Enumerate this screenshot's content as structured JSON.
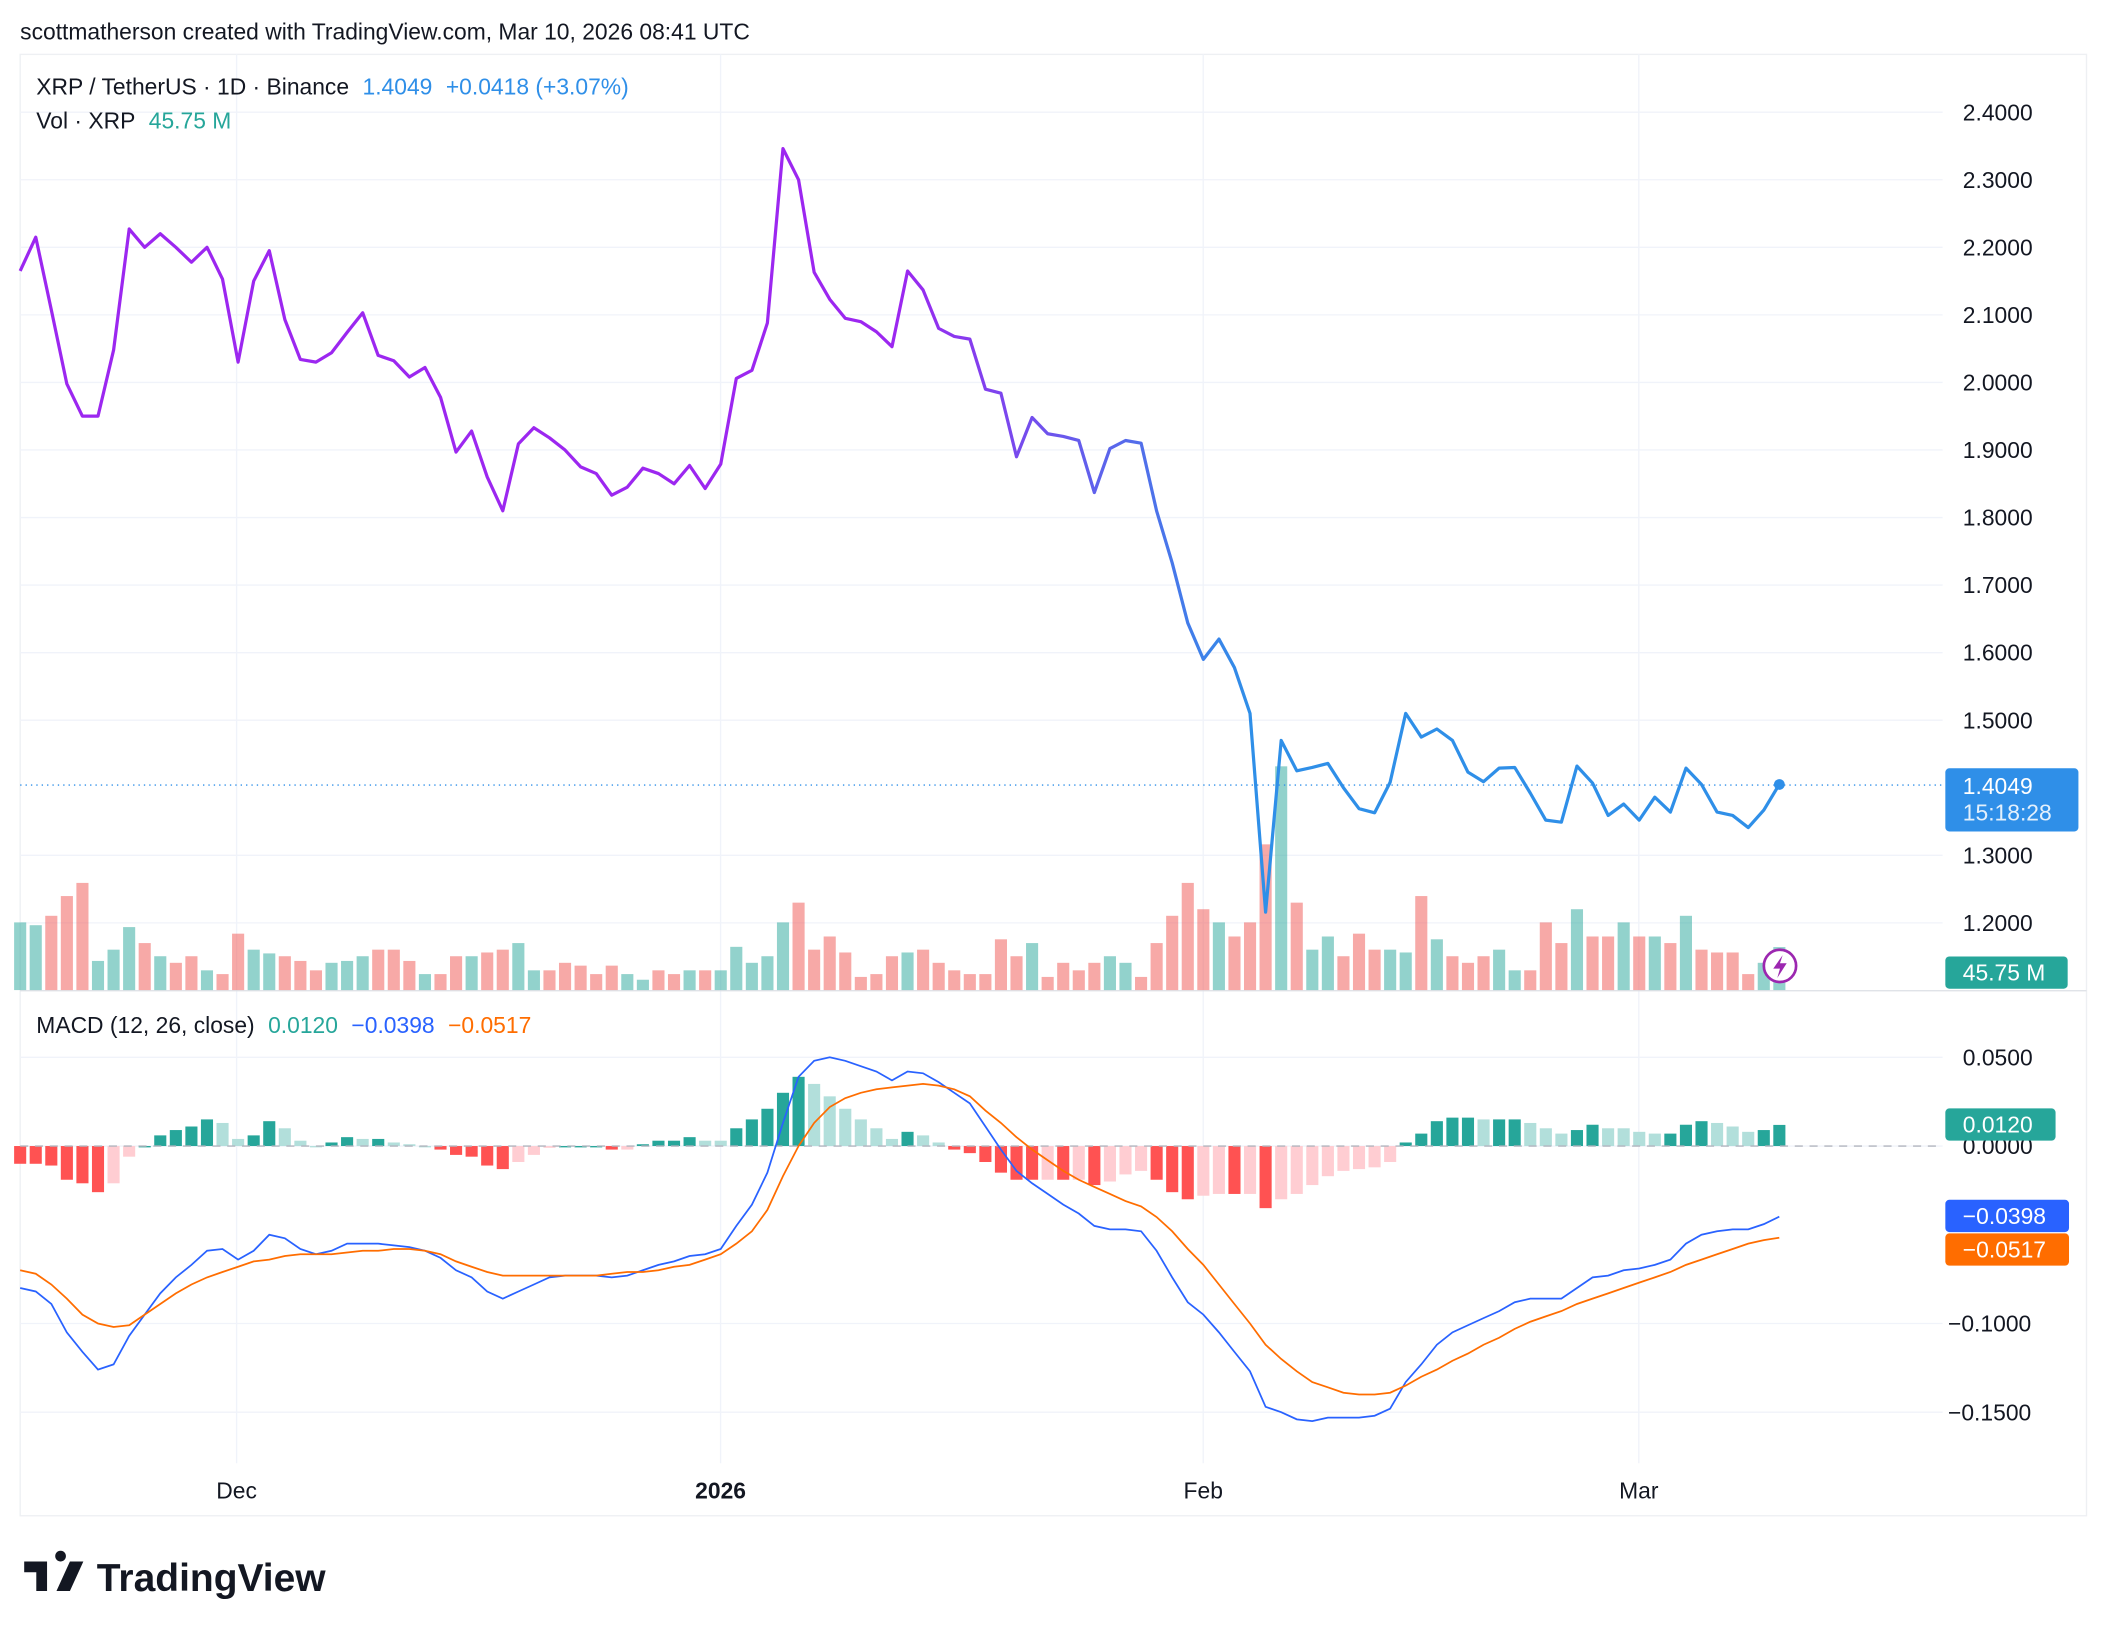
{
  "header": {
    "attribution": "scottmatherson created with TradingView.com, Mar 10, 2026 08:41 UTC"
  },
  "legend": {
    "symbol": "XRP / TetherUS · 1D · Binance",
    "last": "1.4049",
    "change": "+0.0418 (+3.07%)",
    "vol_label": "Vol · XRP",
    "vol_value": "45.75 M",
    "macd_label": "MACD (12, 26, close)",
    "macd_hist": "0.0120",
    "macd_line": "−0.0398",
    "macd_signal": "−0.0517"
  },
  "badges": {
    "price": "1.4049",
    "countdown": "15:18:28",
    "volume": "45.75 M",
    "hist": "0.0120",
    "macd": "−0.0398",
    "signal": "−0.0517"
  },
  "colors": {
    "price_start": "#9c27f0",
    "price_end": "#2f8fe8",
    "up": "#26a69a",
    "down": "#ef5350",
    "macd": "#2962ff",
    "signal": "#ff6d00",
    "badge_price": "#2f8fe8"
  },
  "logo": "TradingView",
  "chart_data": [
    {
      "type": "line",
      "title": "XRP / TetherUS · 1D · Binance",
      "start_date": "2025-11-17",
      "end_date": "2026-03-10",
      "x_ticks": [
        "Dec",
        "2026",
        "Feb",
        "Mar"
      ],
      "y_ticks": [
        "2.4000",
        "2.3000",
        "2.2000",
        "2.1000",
        "2.0000",
        "1.9000",
        "1.8000",
        "1.7000",
        "1.6000",
        "1.5000",
        "1.3000",
        "1.2000"
      ],
      "ylim": [
        1.1,
        2.45
      ],
      "grid": true,
      "close": [
        2.165,
        2.215,
        2.107,
        1.998,
        1.95,
        1.95,
        2.048,
        2.227,
        2.2,
        2.22,
        2.2,
        2.178,
        2.2,
        2.153,
        2.03,
        2.15,
        2.195,
        2.093,
        2.034,
        2.03,
        2.044,
        2.074,
        2.103,
        2.04,
        2.032,
        2.008,
        2.022,
        1.978,
        1.897,
        1.928,
        1.86,
        1.81,
        1.909,
        1.933,
        1.918,
        1.9,
        1.875,
        1.865,
        1.833,
        1.845,
        1.873,
        1.865,
        1.85,
        1.877,
        1.843,
        1.879,
        2.006,
        2.018,
        2.088,
        2.346,
        2.3,
        2.163,
        2.123,
        2.095,
        2.09,
        2.075,
        2.053,
        2.165,
        2.137,
        2.08,
        2.068,
        2.064,
        1.99,
        1.984,
        1.89,
        1.948,
        1.924,
        1.92,
        1.914,
        1.837,
        1.902,
        1.914,
        1.91,
        1.81,
        1.733,
        1.644,
        1.59,
        1.62,
        1.578,
        1.51,
        1.216,
        1.47,
        1.425,
        1.43,
        1.436,
        1.4,
        1.369,
        1.363,
        1.408,
        1.51,
        1.475,
        1.487,
        1.47,
        1.423,
        1.409,
        1.429,
        1.43,
        1.392,
        1.352,
        1.349,
        1.432,
        1.407,
        1.359,
        1.376,
        1.352,
        1.386,
        1.364,
        1.429,
        1.405,
        1.364,
        1.359,
        1.341,
        1.367,
        1.4049
      ],
      "volume_millions": [
        72,
        69,
        79,
        100,
        114,
        31,
        43,
        67,
        50,
        36,
        29,
        36,
        21,
        17,
        60,
        43,
        39,
        36,
        31,
        21,
        29,
        31,
        36,
        43,
        43,
        31,
        17,
        17,
        36,
        36,
        40,
        43,
        50,
        21,
        21,
        29,
        26,
        17,
        26,
        17,
        11,
        21,
        17,
        21,
        21,
        21,
        46,
        29,
        36,
        72,
        93,
        43,
        57,
        40,
        14,
        17,
        36,
        40,
        43,
        29,
        21,
        17,
        17,
        54,
        36,
        50,
        14,
        29,
        21,
        29,
        36,
        29,
        14,
        50,
        79,
        114,
        86,
        72,
        57,
        72,
        155,
        238,
        93,
        43,
        57,
        36,
        60,
        43,
        43,
        40,
        100,
        54,
        36,
        29,
        36,
        43,
        21,
        21,
        72,
        50,
        86,
        57,
        57,
        72,
        57,
        57,
        50,
        79,
        43,
        40,
        40,
        17,
        29,
        45.75
      ]
    },
    {
      "type": "line",
      "title": "MACD (12, 26, close)",
      "y_ticks": [
        "0.0500",
        "0.0000",
        "−0.1000",
        "−0.1500"
      ],
      "ylim": [
        -0.17,
        0.065
      ],
      "macd": [
        -0.08,
        -0.082,
        -0.089,
        -0.105,
        -0.116,
        -0.126,
        -0.123,
        -0.107,
        -0.095,
        -0.083,
        -0.074,
        -0.067,
        -0.059,
        -0.058,
        -0.064,
        -0.059,
        -0.05,
        -0.052,
        -0.058,
        -0.061,
        -0.059,
        -0.055,
        -0.055,
        -0.055,
        -0.056,
        -0.057,
        -0.059,
        -0.063,
        -0.07,
        -0.074,
        -0.082,
        -0.086,
        -0.082,
        -0.078,
        -0.074,
        -0.073,
        -0.073,
        -0.073,
        -0.074,
        -0.073,
        -0.07,
        -0.067,
        -0.065,
        -0.062,
        -0.061,
        -0.058,
        -0.045,
        -0.033,
        -0.015,
        0.013,
        0.039,
        0.048,
        0.05,
        0.048,
        0.045,
        0.042,
        0.037,
        0.042,
        0.041,
        0.036,
        0.03,
        0.024,
        0.011,
        -0.002,
        -0.014,
        -0.021,
        -0.027,
        -0.033,
        -0.038,
        -0.045,
        -0.047,
        -0.047,
        -0.048,
        -0.059,
        -0.074,
        -0.088,
        -0.095,
        -0.105,
        -0.116,
        -0.127,
        -0.147,
        -0.15,
        -0.154,
        -0.155,
        -0.153,
        -0.153,
        -0.153,
        -0.152,
        -0.148,
        -0.133,
        -0.123,
        -0.112,
        -0.105,
        -0.101,
        -0.097,
        -0.093,
        -0.088,
        -0.086,
        -0.086,
        -0.086,
        -0.08,
        -0.074,
        -0.073,
        -0.07,
        -0.069,
        -0.067,
        -0.064,
        -0.055,
        -0.05,
        -0.048,
        -0.047,
        -0.047,
        -0.044,
        -0.0398
      ],
      "signal": [
        -0.07,
        -0.072,
        -0.078,
        -0.086,
        -0.095,
        -0.1,
        -0.102,
        -0.101,
        -0.095,
        -0.089,
        -0.083,
        -0.078,
        -0.074,
        -0.071,
        -0.068,
        -0.065,
        -0.064,
        -0.062,
        -0.061,
        -0.061,
        -0.061,
        -0.06,
        -0.059,
        -0.059,
        -0.058,
        -0.058,
        -0.059,
        -0.061,
        -0.065,
        -0.068,
        -0.071,
        -0.073,
        -0.073,
        -0.073,
        -0.073,
        -0.073,
        -0.073,
        -0.073,
        -0.072,
        -0.071,
        -0.071,
        -0.07,
        -0.068,
        -0.067,
        -0.064,
        -0.061,
        -0.055,
        -0.048,
        -0.036,
        -0.017,
        0.0,
        0.013,
        0.022,
        0.027,
        0.03,
        0.032,
        0.033,
        0.034,
        0.035,
        0.034,
        0.032,
        0.028,
        0.02,
        0.013,
        0.005,
        -0.002,
        -0.008,
        -0.014,
        -0.019,
        -0.023,
        -0.027,
        -0.031,
        -0.034,
        -0.04,
        -0.048,
        -0.058,
        -0.067,
        -0.078,
        -0.089,
        -0.1,
        -0.112,
        -0.12,
        -0.127,
        -0.133,
        -0.136,
        -0.139,
        -0.14,
        -0.14,
        -0.139,
        -0.135,
        -0.13,
        -0.126,
        -0.121,
        -0.117,
        -0.112,
        -0.108,
        -0.103,
        -0.099,
        -0.096,
        -0.093,
        -0.089,
        -0.086,
        -0.083,
        -0.08,
        -0.077,
        -0.074,
        -0.071,
        -0.067,
        -0.064,
        -0.061,
        -0.058,
        -0.055,
        -0.053,
        -0.0517
      ]
    }
  ]
}
